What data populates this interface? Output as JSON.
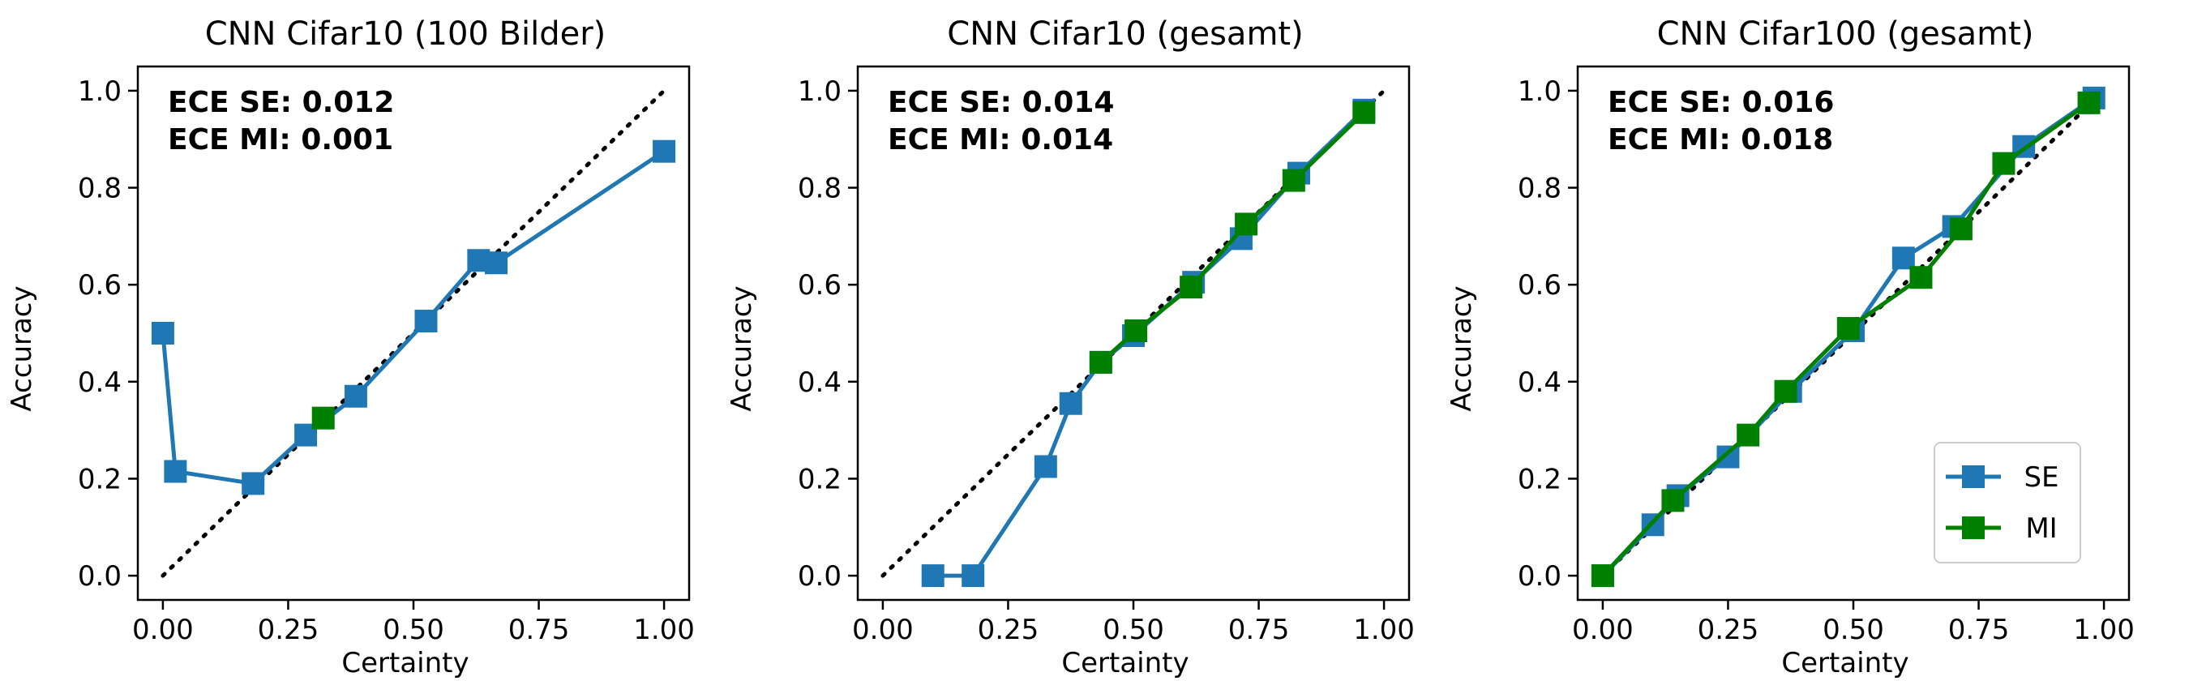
{
  "colors": {
    "se": "#1f77b4",
    "mi": "#008000",
    "ece_text": "#a52a2a",
    "diagonal": "#000000"
  },
  "legend": {
    "se_label": "SE",
    "mi_label": "MI",
    "placement": "lower-right"
  },
  "chart_data": [
    {
      "type": "line",
      "title": "CNN Cifar10 (100 Bilder)",
      "xlabel": "Certainty",
      "ylabel": "Accuracy",
      "xlim": [
        -0.05,
        1.05
      ],
      "ylim": [
        -0.05,
        1.05
      ],
      "xticks": [
        "0.00",
        "0.25",
        "0.50",
        "0.75",
        "1.00"
      ],
      "yticks": [
        "0.0",
        "0.2",
        "0.4",
        "0.6",
        "0.8",
        "1.0"
      ],
      "annotations": [
        "ECE SE: 0.012",
        "ECE MI: 0.001"
      ],
      "grid": false,
      "series": [
        {
          "name": "SE",
          "points": [
            [
              0.0,
              0.5
            ],
            [
              0.025,
              0.215
            ],
            [
              0.18,
              0.19
            ],
            [
              0.285,
              0.29
            ],
            [
              0.385,
              0.37
            ],
            [
              0.525,
              0.525
            ],
            [
              0.63,
              0.65
            ],
            [
              0.665,
              0.645
            ],
            [
              1.0,
              0.875
            ]
          ]
        },
        {
          "name": "MI",
          "points": [
            [
              0.32,
              0.325
            ]
          ]
        }
      ]
    },
    {
      "type": "line",
      "title": "CNN Cifar10 (gesamt)",
      "xlabel": "Certainty",
      "ylabel": "Accuracy",
      "xlim": [
        -0.05,
        1.05
      ],
      "ylim": [
        -0.05,
        1.05
      ],
      "xticks": [
        "0.00",
        "0.25",
        "0.50",
        "0.75",
        "1.00"
      ],
      "yticks": [
        "0.0",
        "0.2",
        "0.4",
        "0.6",
        "0.8",
        "1.0"
      ],
      "annotations": [
        "ECE SE: 0.014",
        "ECE MI: 0.014"
      ],
      "grid": false,
      "series": [
        {
          "name": "SE",
          "points": [
            [
              0.1,
              0.0
            ],
            [
              0.18,
              0.0
            ],
            [
              0.325,
              0.225
            ],
            [
              0.375,
              0.355
            ],
            [
              0.435,
              0.44
            ],
            [
              0.5,
              0.495
            ],
            [
              0.62,
              0.605
            ],
            [
              0.715,
              0.695
            ],
            [
              0.83,
              0.83
            ],
            [
              0.96,
              0.96
            ]
          ]
        },
        {
          "name": "MI",
          "points": [
            [
              0.435,
              0.44
            ],
            [
              0.505,
              0.505
            ],
            [
              0.615,
              0.595
            ],
            [
              0.725,
              0.725
            ],
            [
              0.82,
              0.815
            ],
            [
              0.96,
              0.955
            ]
          ]
        }
      ]
    },
    {
      "type": "line",
      "title": "CNN Cifar100 (gesamt)",
      "xlabel": "Certainty",
      "ylabel": "Accuracy",
      "xlim": [
        -0.05,
        1.05
      ],
      "ylim": [
        -0.05,
        1.05
      ],
      "xticks": [
        "0.00",
        "0.25",
        "0.50",
        "0.75",
        "1.00"
      ],
      "yticks": [
        "0.0",
        "0.2",
        "0.4",
        "0.6",
        "0.8",
        "1.0"
      ],
      "annotations": [
        "ECE SE: 0.016",
        "ECE MI: 0.018"
      ],
      "grid": false,
      "series": [
        {
          "name": "SE",
          "points": [
            [
              0.0,
              0.0
            ],
            [
              0.1,
              0.105
            ],
            [
              0.15,
              0.165
            ],
            [
              0.25,
              0.245
            ],
            [
              0.375,
              0.38
            ],
            [
              0.5,
              0.505
            ],
            [
              0.6,
              0.655
            ],
            [
              0.7,
              0.72
            ],
            [
              0.84,
              0.885
            ],
            [
              0.98,
              0.985
            ]
          ]
        },
        {
          "name": "MI",
          "points": [
            [
              0.0,
              0.0
            ],
            [
              0.14,
              0.155
            ],
            [
              0.29,
              0.29
            ],
            [
              0.365,
              0.38
            ],
            [
              0.49,
              0.51
            ],
            [
              0.635,
              0.615
            ],
            [
              0.715,
              0.715
            ],
            [
              0.8,
              0.85
            ],
            [
              0.97,
              0.975
            ]
          ]
        }
      ]
    }
  ]
}
